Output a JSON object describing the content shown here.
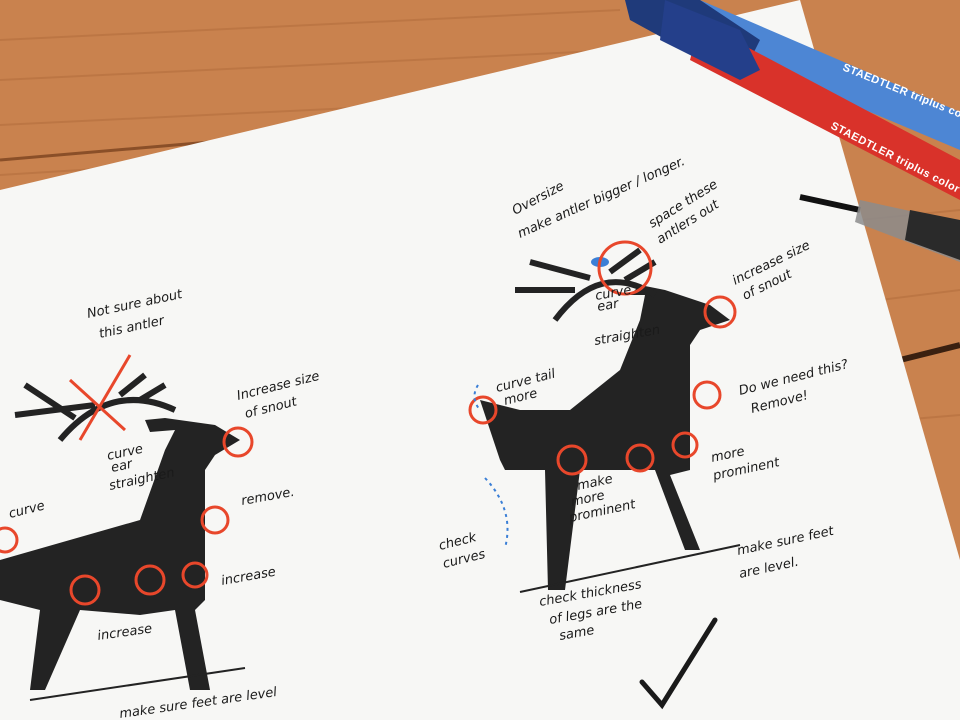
{
  "colors": {
    "table": "#c9824e",
    "paper": "#f7f7f5",
    "deer": "#222222",
    "marker_red": "#e8472b",
    "marker_blue": "#3b7fd6"
  },
  "pens": {
    "blue_brand": "STAEDTLER triplus color",
    "red_brand": "STAEDTLER triplus color"
  },
  "left_sketch": {
    "antler_note_1": "Not sure about",
    "antler_note_2": "this antler",
    "snout_note_1": "Increase size",
    "snout_note_2": "of snout",
    "ear_note_1": "curve",
    "ear_note_2": "ear",
    "straighten": "straighten",
    "curve": "curve",
    "remove": "remove.",
    "increase_right": "increase",
    "increase_bottom": "increase",
    "feet": "make sure feet are level"
  },
  "right_sketch": {
    "oversize_1": "Oversize",
    "oversize_2": "make antler bigger / longer.",
    "space_1": "space these",
    "space_2": "antlers out",
    "snout_1": "increase size",
    "snout_2": "of snout",
    "ear_1": "curve",
    "ear_2": "ear",
    "straighten": "straighten",
    "tail_1": "curve tail",
    "tail_2": "more",
    "need_1": "Do we need this?",
    "need_2": "Remove!",
    "prominent_1": "more",
    "prominent_2": "prominent",
    "make_1": "make",
    "make_2": "more",
    "make_3": "prominent",
    "curves_1": "check",
    "curves_2": "curves",
    "feet_1": "make sure feet",
    "feet_2": "are level.",
    "legs_1": "check thickness",
    "legs_2": "of legs are the",
    "legs_3": "same"
  }
}
